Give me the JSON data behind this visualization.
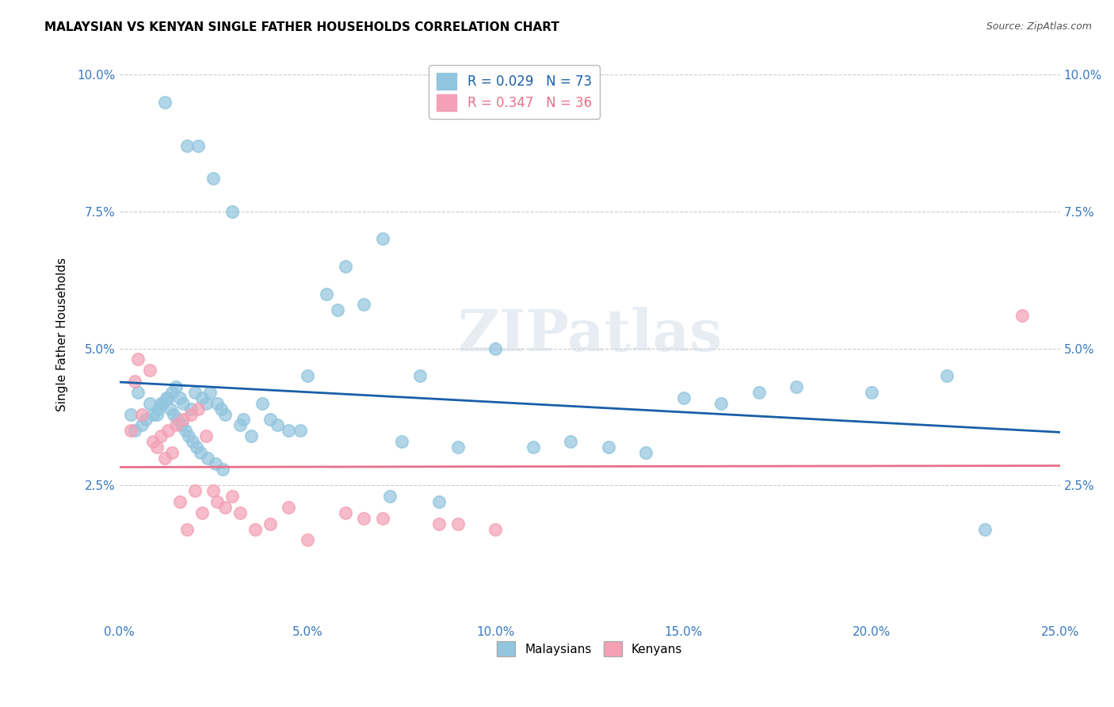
{
  "title": "MALAYSIAN VS KENYAN SINGLE FATHER HOUSEHOLDS CORRELATION CHART",
  "source": "Source: ZipAtlas.com",
  "ylabel": "Single Father Households",
  "xlabel_ticks": [
    "0.0%",
    "5.0%",
    "10.0%",
    "15.0%",
    "20.0%",
    "25.0%"
  ],
  "xlabel_vals": [
    0.0,
    5.0,
    10.0,
    15.0,
    20.0,
    25.0
  ],
  "ylabel_ticks": [
    "2.5%",
    "5.0%",
    "7.5%",
    "10.0%"
  ],
  "ylabel_vals": [
    2.5,
    5.0,
    7.5,
    10.0
  ],
  "xlim": [
    0.0,
    25.0
  ],
  "ylim": [
    0.0,
    10.5
  ],
  "malaysian_color": "#92c5de",
  "kenyan_color": "#f4a0b5",
  "trendline_malaysian_color": "#1a5fa8",
  "trendline_kenyan_color": "#e8708a",
  "legend_r_malaysian": "R = 0.029",
  "legend_n_malaysian": "N = 73",
  "legend_r_kenyan": "R = 0.347",
  "legend_n_kenyan": "N = 36",
  "watermark": "ZIPatlas",
  "malaysian_x": [
    1.2,
    1.8,
    2.1,
    2.5,
    3.0,
    0.5,
    0.8,
    1.0,
    1.1,
    1.3,
    1.4,
    1.5,
    1.6,
    1.7,
    1.9,
    2.0,
    2.2,
    2.3,
    2.4,
    2.6,
    2.7,
    2.8,
    3.2,
    3.5,
    3.8,
    4.0,
    4.2,
    4.5,
    5.0,
    5.5,
    6.0,
    6.5,
    7.0,
    7.5,
    8.0,
    9.0,
    10.0,
    11.0,
    12.0,
    13.0,
    14.0,
    15.0,
    16.0,
    17.0,
    18.0,
    20.0,
    23.0,
    0.3,
    0.4,
    0.6,
    0.7,
    0.9,
    1.05,
    1.15,
    1.25,
    1.35,
    1.45,
    1.55,
    1.65,
    1.75,
    1.85,
    1.95,
    2.05,
    2.15,
    2.35,
    2.55,
    2.75,
    3.3,
    4.8,
    5.8,
    7.2,
    8.5,
    22.0
  ],
  "malaysian_y": [
    9.5,
    8.7,
    8.7,
    8.1,
    7.5,
    4.2,
    4.0,
    3.8,
    4.0,
    4.1,
    4.2,
    4.3,
    4.1,
    4.0,
    3.9,
    4.2,
    4.1,
    4.0,
    4.2,
    4.0,
    3.9,
    3.8,
    3.6,
    3.4,
    4.0,
    3.7,
    3.6,
    3.5,
    4.5,
    6.0,
    6.5,
    5.8,
    7.0,
    3.3,
    4.5,
    3.2,
    5.0,
    3.2,
    3.3,
    3.2,
    3.1,
    4.1,
    4.0,
    4.2,
    4.3,
    4.2,
    1.7,
    3.8,
    3.5,
    3.6,
    3.7,
    3.8,
    3.9,
    4.0,
    4.1,
    3.9,
    3.8,
    3.7,
    3.6,
    3.5,
    3.4,
    3.3,
    3.2,
    3.1,
    3.0,
    2.9,
    2.8,
    3.7,
    3.5,
    5.7,
    2.3,
    2.2,
    4.5
  ],
  "kenyan_x": [
    0.3,
    0.5,
    0.8,
    1.0,
    1.2,
    1.4,
    1.6,
    1.8,
    2.0,
    2.2,
    2.5,
    2.8,
    3.2,
    3.6,
    4.0,
    5.0,
    6.0,
    7.0,
    8.5,
    10.0,
    0.4,
    0.6,
    0.9,
    1.1,
    1.3,
    1.5,
    1.7,
    1.9,
    2.1,
    2.3,
    2.6,
    3.0,
    4.5,
    6.5,
    9.0,
    24.0
  ],
  "kenyan_y": [
    3.5,
    4.8,
    4.6,
    3.2,
    3.0,
    3.1,
    2.2,
    1.7,
    2.4,
    2.0,
    2.4,
    2.1,
    2.0,
    1.7,
    1.8,
    1.5,
    2.0,
    1.9,
    1.8,
    1.7,
    4.4,
    3.8,
    3.3,
    3.4,
    3.5,
    3.6,
    3.7,
    3.8,
    3.9,
    3.4,
    2.2,
    2.3,
    2.1,
    1.9,
    1.8,
    5.6
  ]
}
